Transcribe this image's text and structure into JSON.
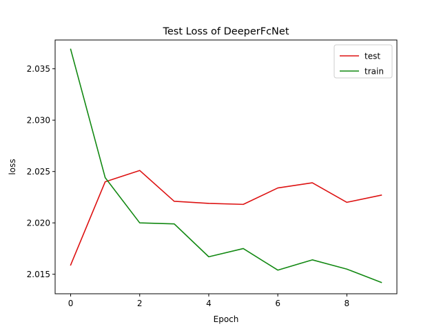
{
  "chart_data": {
    "type": "line",
    "title": "Test Loss of DeeperFcNet",
    "xlabel": "Epoch",
    "ylabel": "loss",
    "x": [
      0,
      1,
      2,
      3,
      4,
      5,
      6,
      7,
      8,
      9
    ],
    "xlim": [
      -0.45,
      9.45
    ],
    "ylim": [
      2.0131,
      2.0378
    ],
    "xticks": [
      0,
      2,
      4,
      6,
      8
    ],
    "yticks": [
      2.015,
      2.02,
      2.025,
      2.03,
      2.035
    ],
    "ytick_labels": [
      "2.015",
      "2.020",
      "2.025",
      "2.030",
      "2.035"
    ],
    "grid": false,
    "legend_position": "top-right",
    "series": [
      {
        "name": "test",
        "color": "#dd1111",
        "values": [
          2.0159,
          2.024,
          2.0251,
          2.0221,
          2.0219,
          2.0218,
          2.0234,
          2.0239,
          2.022,
          2.0227
        ]
      },
      {
        "name": "train",
        "color": "#118811",
        "values": [
          2.0369,
          2.0244,
          2.02,
          2.0199,
          2.0167,
          2.0175,
          2.0154,
          2.0164,
          2.0155,
          2.0142
        ]
      }
    ]
  }
}
